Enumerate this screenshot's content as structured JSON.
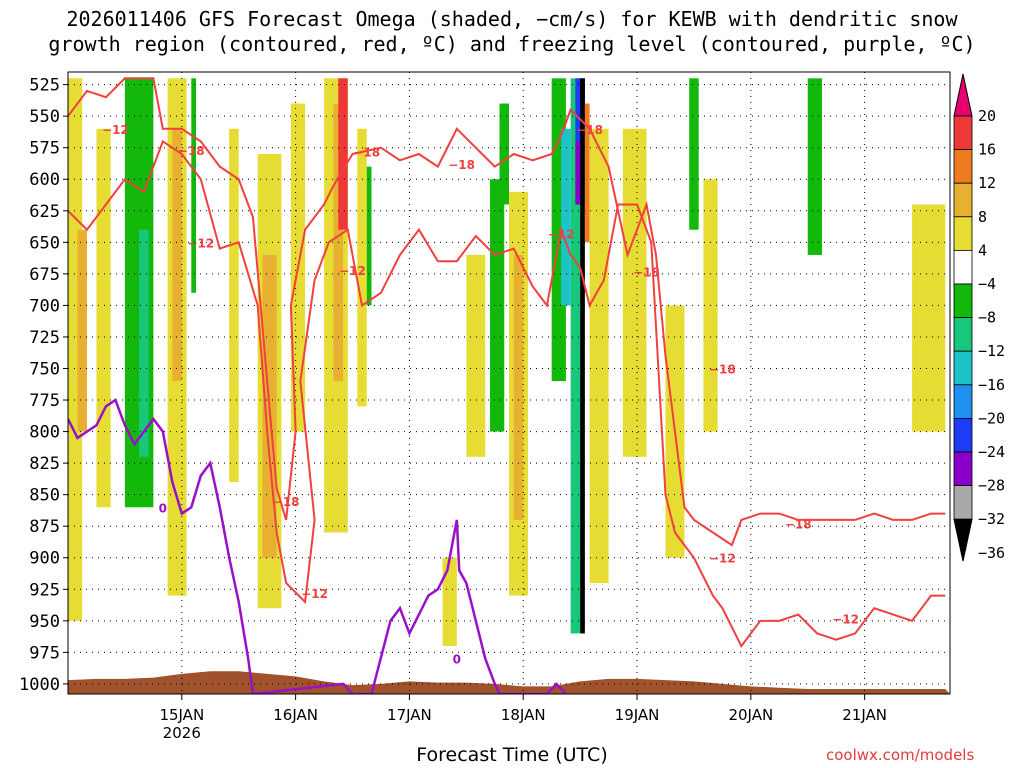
{
  "title_line1": "2026011406 GFS Forecast Omega (shaded, −cm/s) for KEWB with dendritic snow",
  "title_line2": "growth region (contoured, red, ºC) and freezing level (contoured, purple, ºC)",
  "chart_data": {
    "type": "heatmap",
    "xlabel": "Forecast Time (UTC)",
    "credit": "coolwx.com/models",
    "x_ticks": [
      "15JAN\n2026",
      "16JAN",
      "17JAN",
      "18JAN",
      "19JAN",
      "20JAN",
      "21JAN"
    ],
    "x_range_hours": [
      -18,
      168
    ],
    "y_ticks": [
      525,
      550,
      575,
      600,
      625,
      650,
      675,
      700,
      725,
      750,
      775,
      800,
      825,
      850,
      875,
      900,
      925,
      950,
      975,
      1000
    ],
    "y_range_hpa": [
      515,
      1008
    ],
    "grid": true,
    "colorbar": {
      "labels": [
        "20",
        "16",
        "12",
        "8",
        "4",
        "−4",
        "−8",
        "−12",
        "−16",
        "−20",
        "−24",
        "−28",
        "−32",
        "−36"
      ],
      "colors": [
        "#e8006e",
        "#ee3838",
        "#ef7b1f",
        "#e8b030",
        "#e6dc33",
        "#ffffff",
        "#12b80a",
        "#17c77a",
        "#1ec3c8",
        "#1e90f0",
        "#1e3cf5",
        "#8a00c8",
        "#a9a9a9",
        "#000000"
      ]
    },
    "omega_bands": [
      {
        "h0": -18,
        "h1": -15,
        "p0": 520,
        "p1": 950,
        "color": "#e6dc33"
      },
      {
        "h0": -16,
        "h1": -14,
        "p0": 640,
        "p1": 800,
        "color": "#e8b030"
      },
      {
        "h0": -12,
        "h1": -9,
        "p0": 560,
        "p1": 860,
        "color": "#e6dc33"
      },
      {
        "h0": -6,
        "h1": 0,
        "p0": 520,
        "p1": 860,
        "color": "#12b80a"
      },
      {
        "h0": -3,
        "h1": -1,
        "p0": 640,
        "p1": 820,
        "color": "#17c77a"
      },
      {
        "h0": 3,
        "h1": 7,
        "p0": 520,
        "p1": 930,
        "color": "#e6dc33"
      },
      {
        "h0": 4,
        "h1": 6,
        "p0": 560,
        "p1": 760,
        "color": "#e8b030"
      },
      {
        "h0": 8,
        "h1": 9,
        "p0": 520,
        "p1": 690,
        "color": "#12b80a"
      },
      {
        "h0": 16,
        "h1": 18,
        "p0": 560,
        "p1": 840,
        "color": "#e6dc33"
      },
      {
        "h0": 22,
        "h1": 27,
        "p0": 580,
        "p1": 940,
        "color": "#e6dc33"
      },
      {
        "h0": 23,
        "h1": 26,
        "p0": 660,
        "p1": 900,
        "color": "#e8b030"
      },
      {
        "h0": 29,
        "h1": 32,
        "p0": 540,
        "p1": 800,
        "color": "#e6dc33"
      },
      {
        "h0": 36,
        "h1": 41,
        "p0": 520,
        "p1": 880,
        "color": "#e6dc33"
      },
      {
        "h0": 38,
        "h1": 40,
        "p0": 540,
        "p1": 760,
        "color": "#e8b030"
      },
      {
        "h0": 39,
        "h1": 41,
        "p0": 520,
        "p1": 640,
        "color": "#ee3838"
      },
      {
        "h0": 43,
        "h1": 45,
        "p0": 560,
        "p1": 780,
        "color": "#e6dc33"
      },
      {
        "h0": 45,
        "h1": 46,
        "p0": 590,
        "p1": 700,
        "color": "#12b80a"
      },
      {
        "h0": 61,
        "h1": 64,
        "p0": 900,
        "p1": 970,
        "color": "#e6dc33"
      },
      {
        "h0": 66,
        "h1": 70,
        "p0": 660,
        "p1": 820,
        "color": "#e6dc33"
      },
      {
        "h0": 71,
        "h1": 74,
        "p0": 600,
        "p1": 800,
        "color": "#12b80a"
      },
      {
        "h0": 73,
        "h1": 75,
        "p0": 540,
        "p1": 620,
        "color": "#12b80a"
      },
      {
        "h0": 75,
        "h1": 79,
        "p0": 610,
        "p1": 930,
        "color": "#e6dc33"
      },
      {
        "h0": 76,
        "h1": 78,
        "p0": 660,
        "p1": 870,
        "color": "#e8b030"
      },
      {
        "h0": 84,
        "h1": 87,
        "p0": 520,
        "p1": 760,
        "color": "#12b80a"
      },
      {
        "h0": 86,
        "h1": 88,
        "p0": 560,
        "p1": 700,
        "color": "#1ec3c8"
      },
      {
        "h0": 88,
        "h1": 90,
        "p0": 520,
        "p1": 960,
        "color": "#17c77a"
      },
      {
        "h0": 89,
        "h1": 91,
        "p0": 520,
        "p1": 620,
        "color": "#1e3cf5"
      },
      {
        "h0": 90,
        "h1": 91,
        "p0": 520,
        "p1": 960,
        "color": "#000000"
      },
      {
        "h0": 89,
        "h1": 90,
        "p0": 570,
        "p1": 620,
        "color": "#8a00c8"
      },
      {
        "h0": 91,
        "h1": 92,
        "p0": 540,
        "p1": 650,
        "color": "#ef7b1f"
      },
      {
        "h0": 92,
        "h1": 96,
        "p0": 560,
        "p1": 920,
        "color": "#e6dc33"
      },
      {
        "h0": 99,
        "h1": 104,
        "p0": 560,
        "p1": 820,
        "color": "#e6dc33"
      },
      {
        "h0": 108,
        "h1": 112,
        "p0": 700,
        "p1": 900,
        "color": "#e6dc33"
      },
      {
        "h0": 113,
        "h1": 115,
        "p0": 520,
        "p1": 640,
        "color": "#12b80a"
      },
      {
        "h0": 116,
        "h1": 119,
        "p0": 600,
        "p1": 800,
        "color": "#e6dc33"
      },
      {
        "h0": 138,
        "h1": 141,
        "p0": 520,
        "p1": 660,
        "color": "#12b80a"
      },
      {
        "h0": 160,
        "h1": 167,
        "p0": 620,
        "p1": 800,
        "color": "#e6dc33"
      }
    ],
    "dgz_minus12_label": "−12",
    "dgz_minus18_label": "−18",
    "freezing_label": "0",
    "dgz_minus12_line": [
      [
        -18,
        625
      ],
      [
        -14,
        640
      ],
      [
        -10,
        620
      ],
      [
        -6,
        600
      ],
      [
        -2,
        610
      ],
      [
        2,
        570
      ],
      [
        6,
        580
      ],
      [
        10,
        600
      ],
      [
        14,
        655
      ],
      [
        18,
        650
      ],
      [
        22,
        700
      ],
      [
        24,
        800
      ],
      [
        26,
        880
      ],
      [
        28,
        920
      ],
      [
        32,
        935
      ],
      [
        34,
        870
      ],
      [
        31,
        760
      ],
      [
        34,
        680
      ],
      [
        37,
        650
      ],
      [
        41,
        640
      ],
      [
        44,
        700
      ],
      [
        48,
        690
      ],
      [
        52,
        660
      ],
      [
        56,
        640
      ],
      [
        60,
        665
      ],
      [
        64,
        665
      ],
      [
        68,
        645
      ],
      [
        72,
        660
      ],
      [
        76,
        655
      ],
      [
        80,
        685
      ],
      [
        83,
        700
      ],
      [
        86,
        640
      ],
      [
        88,
        660
      ],
      [
        90,
        670
      ],
      [
        92,
        700
      ],
      [
        95,
        680
      ],
      [
        98,
        620
      ],
      [
        102,
        620
      ],
      [
        105,
        650
      ],
      [
        108,
        850
      ],
      [
        110,
        880
      ],
      [
        114,
        900
      ],
      [
        118,
        930
      ],
      [
        120,
        940
      ],
      [
        124,
        970
      ],
      [
        128,
        950
      ],
      [
        132,
        950
      ],
      [
        136,
        945
      ],
      [
        140,
        960
      ],
      [
        144,
        965
      ],
      [
        148,
        960
      ],
      [
        152,
        940
      ],
      [
        156,
        945
      ],
      [
        160,
        950
      ],
      [
        164,
        930
      ],
      [
        167,
        930
      ]
    ],
    "dgz_minus18_line": [
      [
        -18,
        550
      ],
      [
        -14,
        530
      ],
      [
        -10,
        535
      ],
      [
        -6,
        520
      ],
      [
        0,
        520
      ],
      [
        2,
        560
      ],
      [
        6,
        560
      ],
      [
        10,
        570
      ],
      [
        14,
        590
      ],
      [
        18,
        600
      ],
      [
        21,
        630
      ],
      [
        24,
        760
      ],
      [
        26,
        845
      ],
      [
        28,
        870
      ],
      [
        30,
        800
      ],
      [
        29,
        700
      ],
      [
        32,
        640
      ],
      [
        36,
        620
      ],
      [
        38,
        605
      ],
      [
        42,
        580
      ],
      [
        48,
        575
      ],
      [
        52,
        585
      ],
      [
        56,
        580
      ],
      [
        60,
        590
      ],
      [
        64,
        560
      ],
      [
        68,
        575
      ],
      [
        72,
        590
      ],
      [
        76,
        580
      ],
      [
        80,
        585
      ],
      [
        84,
        580
      ],
      [
        86,
        565
      ],
      [
        88,
        545
      ],
      [
        92,
        560
      ],
      [
        96,
        590
      ],
      [
        100,
        660
      ],
      [
        104,
        620
      ],
      [
        106,
        660
      ],
      [
        107,
        700
      ],
      [
        108,
        740
      ],
      [
        110,
        800
      ],
      [
        112,
        860
      ],
      [
        114,
        870
      ],
      [
        118,
        880
      ],
      [
        122,
        890
      ],
      [
        124,
        870
      ],
      [
        128,
        865
      ],
      [
        132,
        865
      ],
      [
        136,
        870
      ],
      [
        140,
        870
      ],
      [
        144,
        870
      ],
      [
        148,
        870
      ],
      [
        152,
        865
      ],
      [
        156,
        870
      ],
      [
        160,
        870
      ],
      [
        164,
        865
      ],
      [
        167,
        865
      ]
    ],
    "freezing_line": [
      [
        -18,
        790
      ],
      [
        -16,
        805
      ],
      [
        -12,
        795
      ],
      [
        -10,
        780
      ],
      [
        -8,
        775
      ],
      [
        -6,
        795
      ],
      [
        -4,
        810
      ],
      [
        -2,
        800
      ],
      [
        0,
        790
      ],
      [
        2,
        800
      ],
      [
        4,
        840
      ],
      [
        6,
        865
      ],
      [
        8,
        860
      ],
      [
        10,
        835
      ],
      [
        12,
        825
      ],
      [
        14,
        860
      ],
      [
        16,
        900
      ],
      [
        18,
        935
      ],
      [
        20,
        980
      ],
      [
        21,
        1008
      ],
      [
        40,
        1000
      ],
      [
        42,
        1008
      ],
      [
        46,
        1008
      ],
      [
        50,
        950
      ],
      [
        52,
        940
      ],
      [
        54,
        960
      ],
      [
        56,
        945
      ],
      [
        58,
        930
      ],
      [
        60,
        925
      ],
      [
        62,
        910
      ],
      [
        64,
        870
      ],
      [
        64.5,
        910
      ],
      [
        66,
        920
      ],
      [
        68,
        950
      ],
      [
        70,
        980
      ],
      [
        72,
        1000
      ],
      [
        73,
        1008
      ],
      [
        83,
        1008
      ],
      [
        85,
        1000
      ],
      [
        87,
        1008
      ]
    ],
    "terrain_top_hpa": [
      [
        -18,
        997
      ],
      [
        -12,
        996
      ],
      [
        -6,
        996
      ],
      [
        0,
        995
      ],
      [
        6,
        992
      ],
      [
        12,
        990
      ],
      [
        18,
        990
      ],
      [
        24,
        992
      ],
      [
        30,
        994
      ],
      [
        36,
        998
      ],
      [
        42,
        1001
      ],
      [
        48,
        1000
      ],
      [
        54,
        998
      ],
      [
        60,
        999
      ],
      [
        66,
        999
      ],
      [
        72,
        1000
      ],
      [
        78,
        1002
      ],
      [
        84,
        1002
      ],
      [
        90,
        998
      ],
      [
        96,
        996
      ],
      [
        102,
        996
      ],
      [
        108,
        997
      ],
      [
        114,
        998
      ],
      [
        120,
        1000
      ],
      [
        126,
        1002
      ],
      [
        132,
        1003
      ],
      [
        138,
        1004
      ],
      [
        144,
        1004
      ],
      [
        150,
        1004
      ],
      [
        156,
        1004
      ],
      [
        162,
        1004
      ],
      [
        167,
        1004
      ]
    ]
  }
}
